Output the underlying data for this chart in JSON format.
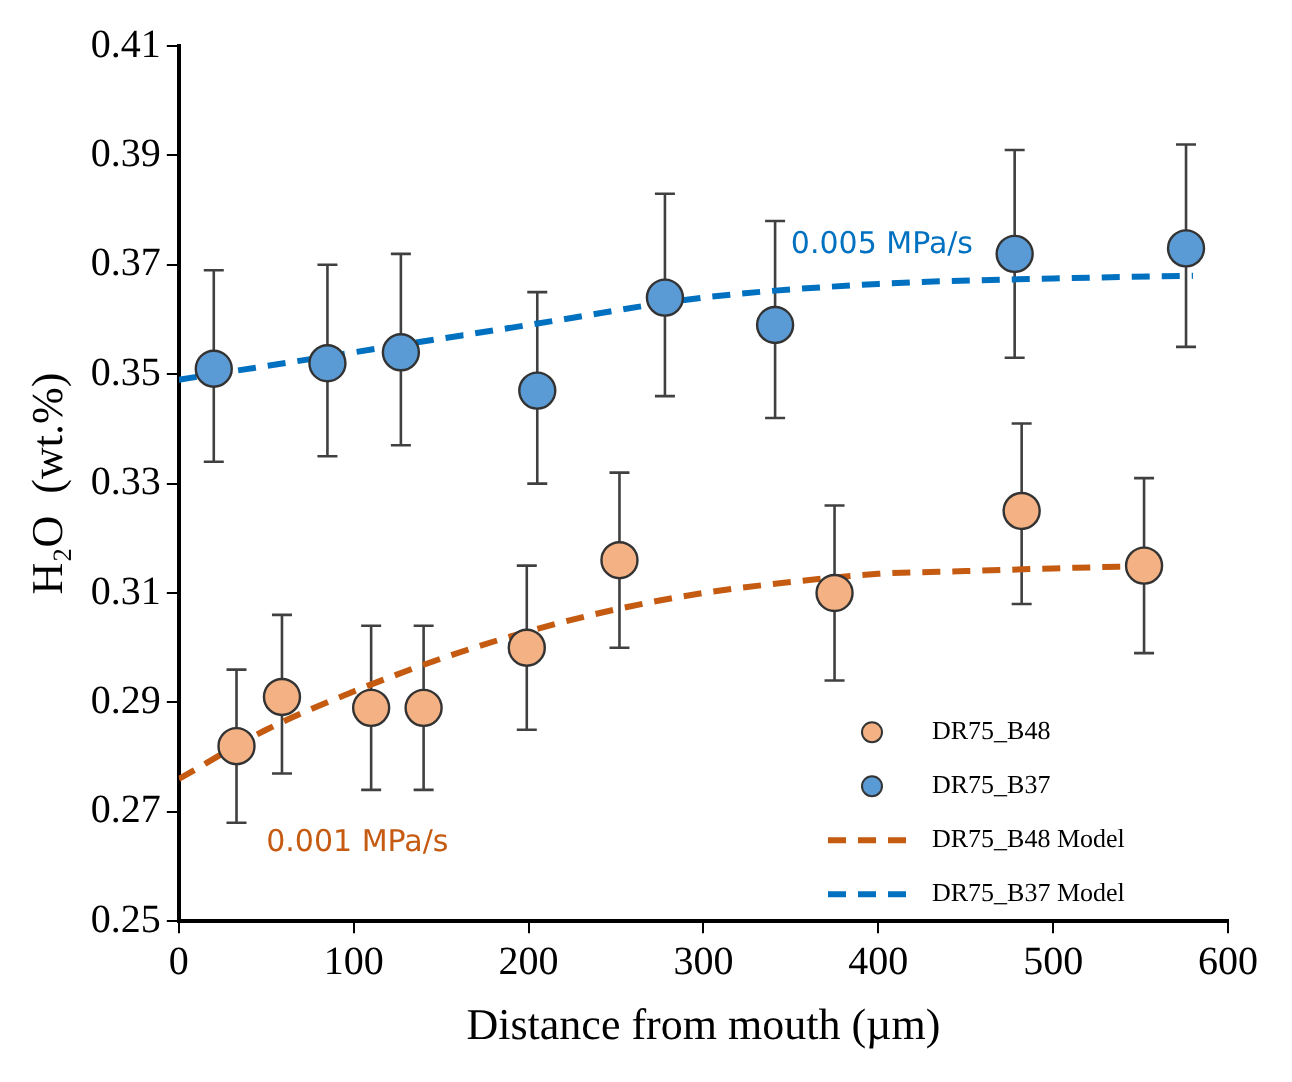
{
  "chart_data": {
    "type": "scatter",
    "xlabel": "Distance from mouth (µm)",
    "ylabel": "H₂O  (wt.%)",
    "xlim": [
      0,
      600
    ],
    "xticks": [
      0,
      100,
      200,
      300,
      400,
      500,
      600
    ],
    "ylim": [
      0.25,
      0.41
    ],
    "yticks": [
      0.25,
      0.27,
      0.29,
      0.31,
      0.33,
      0.35,
      0.37,
      0.39,
      0.41
    ],
    "grid": false,
    "legend": "bottom right",
    "marker": "circle",
    "series": [
      {
        "name": "DR75_B48",
        "color": "#f4b183",
        "x": [
          33,
          59,
          110,
          140,
          199,
          252,
          375,
          482,
          552
        ],
        "values": [
          0.282,
          0.291,
          0.289,
          0.289,
          0.3,
          0.316,
          0.31,
          0.325,
          0.315
        ],
        "errors": [
          [
            0.268,
            0.296
          ],
          [
            0.277,
            0.306
          ],
          [
            0.274,
            0.304
          ],
          [
            0.274,
            0.304
          ],
          [
            0.285,
            0.315
          ],
          [
            0.3,
            0.332
          ],
          [
            0.294,
            0.326
          ],
          [
            0.308,
            0.341
          ],
          [
            0.299,
            0.331
          ]
        ]
      },
      {
        "name": "DR75_B37",
        "color": "#5b9bd5",
        "x": [
          20,
          85,
          127,
          205,
          278,
          341,
          478,
          576
        ],
        "values": [
          0.351,
          0.352,
          0.354,
          0.347,
          0.364,
          0.359,
          0.372,
          0.373
        ],
        "errors": [
          [
            0.334,
            0.369
          ],
          [
            0.335,
            0.37
          ],
          [
            0.337,
            0.372
          ],
          [
            0.33,
            0.365
          ],
          [
            0.346,
            0.383
          ],
          [
            0.342,
            0.378
          ],
          [
            0.353,
            0.391
          ],
          [
            0.355,
            0.392
          ]
        ]
      },
      {
        "name": "DR75_B48 Model",
        "type": "line",
        "color": "#c55a11",
        "marker": "none",
        "line_style": "dashed",
        "x": [
          0,
          50,
          100,
          150,
          200,
          250,
          300,
          350,
          400,
          450,
          500,
          560
        ],
        "values": [
          0.276,
          0.285,
          0.292,
          0.298,
          0.303,
          0.307,
          0.31,
          0.312,
          0.3135,
          0.314,
          0.3145,
          0.315
        ]
      },
      {
        "name": "DR75_B37 Model",
        "type": "line",
        "color": "#0070c0",
        "marker": "none",
        "line_style": "dashed",
        "x": [
          0,
          100,
          200,
          300,
          400,
          500,
          580
        ],
        "values": [
          0.349,
          0.354,
          0.359,
          0.364,
          0.3665,
          0.3675,
          0.368
        ]
      }
    ],
    "annotations": [
      "0.001 MPa/s",
      "0.005 MPa/s"
    ]
  }
}
